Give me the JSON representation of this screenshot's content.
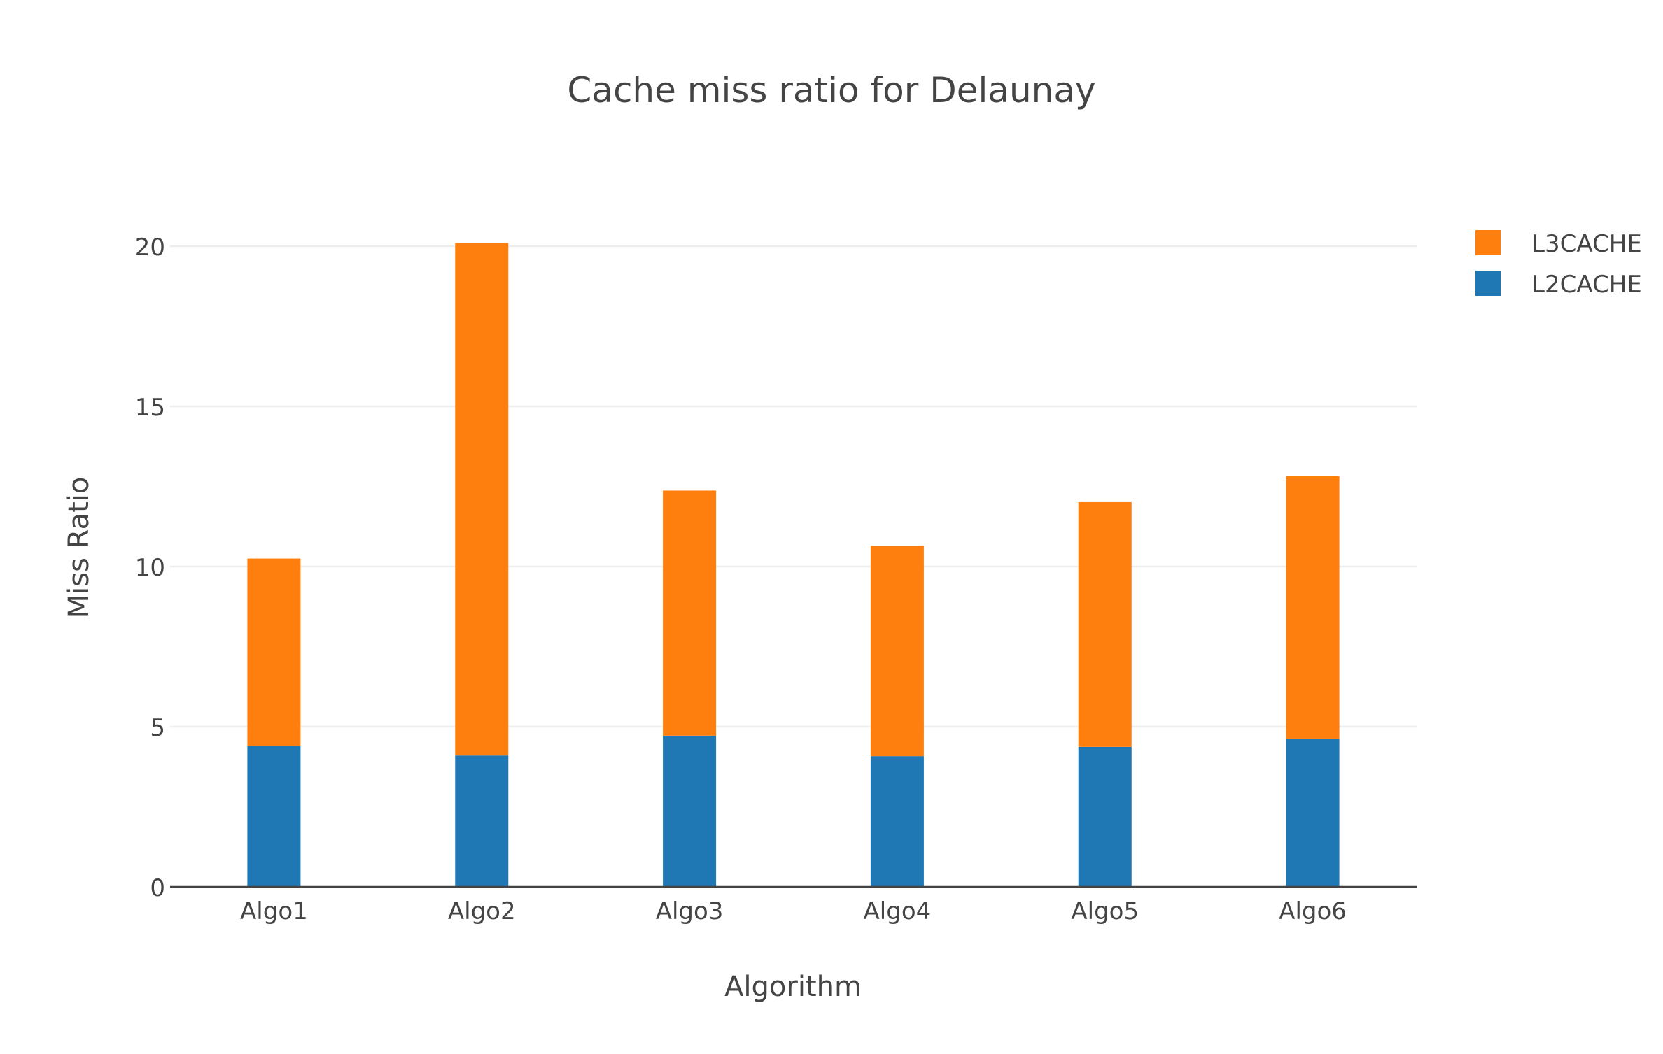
{
  "chart_data": {
    "type": "bar",
    "barmode": "stack",
    "title": "Cache miss ratio for Delaunay",
    "xlabel": "Algorithm",
    "ylabel": "Miss Ratio",
    "categories": [
      "Algo1",
      "Algo2",
      "Algo3",
      "Algo4",
      "Algo5",
      "Algo6"
    ],
    "series": [
      {
        "name": "L2CACHE",
        "color": "#1f77b4",
        "values": [
          4.4,
          4.1,
          4.72,
          4.08,
          4.37,
          4.63
        ]
      },
      {
        "name": "L3CACHE",
        "color": "#ff7f0e",
        "values": [
          5.85,
          16.0,
          7.65,
          6.57,
          7.64,
          8.19
        ]
      }
    ],
    "ylim": [
      0,
      21
    ],
    "yticks": [
      0,
      5,
      10,
      15,
      20
    ],
    "grid": true,
    "legend": {
      "position": "top-right",
      "order": [
        "L3CACHE",
        "L2CACHE"
      ]
    }
  }
}
